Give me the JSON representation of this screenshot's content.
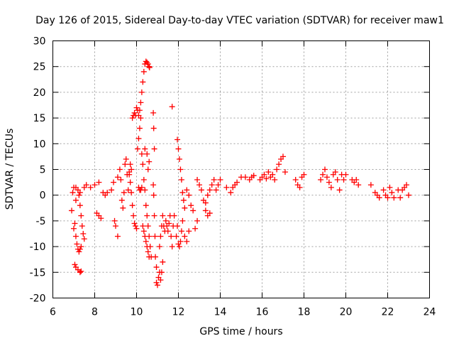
{
  "chart_data": {
    "type": "scatter",
    "title": "Day 126 of 2015, Sidereal Day-to-day VTEC variation (SDTVAR) for receiver maw1",
    "xlabel": "GPS time / hours",
    "ylabel": "SDTVAR / TECUs",
    "xlim": [
      6,
      24
    ],
    "ylim": [
      -20,
      30
    ],
    "xticks": [
      6,
      8,
      10,
      12,
      14,
      16,
      18,
      20,
      22,
      24
    ],
    "yticks": [
      -20,
      -15,
      -10,
      -5,
      0,
      5,
      10,
      15,
      20,
      25,
      30
    ],
    "grid": true,
    "marker": "+",
    "color": "#ff0000",
    "series": [
      {
        "name": "SDTVAR",
        "points": [
          [
            6.9,
            -3.0
          ],
          [
            6.95,
            0.5
          ],
          [
            7.0,
            1.5
          ],
          [
            7.0,
            -6.5
          ],
          [
            7.05,
            -5.5
          ],
          [
            7.1,
            -1.0
          ],
          [
            7.1,
            -8.0
          ],
          [
            7.15,
            -9.5
          ],
          [
            7.2,
            -10.5
          ],
          [
            7.25,
            -11.0
          ],
          [
            7.3,
            -10.5
          ],
          [
            7.35,
            -10.0
          ],
          [
            7.05,
            -13.5
          ],
          [
            7.1,
            -14.0
          ],
          [
            7.2,
            -14.5
          ],
          [
            7.3,
            -15.0
          ],
          [
            7.35,
            -14.8
          ],
          [
            7.2,
            1.0
          ],
          [
            7.25,
            0.0
          ],
          [
            7.3,
            -2.0
          ],
          [
            7.35,
            -4.0
          ],
          [
            7.4,
            -6.0
          ],
          [
            7.45,
            -7.5
          ],
          [
            7.5,
            -8.5
          ],
          [
            7.1,
            1.5
          ],
          [
            7.3,
            0.5
          ],
          [
            7.5,
            1.5
          ],
          [
            7.6,
            2.0
          ],
          [
            7.8,
            1.5
          ],
          [
            8.0,
            2.0
          ],
          [
            8.2,
            2.5
          ],
          [
            8.4,
            0.5
          ],
          [
            8.5,
            0.0
          ],
          [
            8.6,
            0.5
          ],
          [
            8.8,
            1.0
          ],
          [
            8.9,
            2.5
          ],
          [
            8.1,
            -3.5
          ],
          [
            8.2,
            -4.0
          ],
          [
            8.3,
            -4.5
          ],
          [
            8.95,
            -5.0
          ],
          [
            9.0,
            -6.0
          ],
          [
            9.1,
            -8.0
          ],
          [
            9.1,
            3.5
          ],
          [
            9.2,
            5.0
          ],
          [
            9.25,
            3.0
          ],
          [
            9.3,
            -1.0
          ],
          [
            9.35,
            -2.5
          ],
          [
            9.4,
            0.5
          ],
          [
            9.45,
            6.0
          ],
          [
            9.5,
            7.0
          ],
          [
            9.55,
            4.0
          ],
          [
            9.65,
            4.0
          ],
          [
            9.7,
            2.5
          ],
          [
            9.75,
            0.5
          ],
          [
            9.8,
            -2.0
          ],
          [
            9.85,
            -4.0
          ],
          [
            9.9,
            -5.5
          ],
          [
            9.95,
            -6.0
          ],
          [
            10.0,
            -6.5
          ],
          [
            9.6,
            1.0
          ],
          [
            9.65,
            4.5
          ],
          [
            9.7,
            6.0
          ],
          [
            9.75,
            5.0
          ],
          [
            9.8,
            15.0
          ],
          [
            9.85,
            15.5
          ],
          [
            9.9,
            16.0
          ],
          [
            9.95,
            15.5
          ],
          [
            10.0,
            17.0
          ],
          [
            10.05,
            16.5
          ],
          [
            10.1,
            15.5
          ],
          [
            10.15,
            16.5
          ],
          [
            10.2,
            15.0
          ],
          [
            10.1,
            1.5
          ],
          [
            10.15,
            1.0
          ],
          [
            10.2,
            1.0
          ],
          [
            10.25,
            1.5
          ],
          [
            10.05,
            9.0
          ],
          [
            10.1,
            11.0
          ],
          [
            10.15,
            13.0
          ],
          [
            10.2,
            18.0
          ],
          [
            10.25,
            20.0
          ],
          [
            10.3,
            22.0
          ],
          [
            10.35,
            24.0
          ],
          [
            10.4,
            25.5
          ],
          [
            10.45,
            26.0
          ],
          [
            10.5,
            25.8
          ],
          [
            10.55,
            25.5
          ],
          [
            10.6,
            25.0
          ],
          [
            10.62,
            24.8
          ],
          [
            10.25,
            8.0
          ],
          [
            10.3,
            6.0
          ],
          [
            10.35,
            3.0
          ],
          [
            10.4,
            1.0
          ],
          [
            10.45,
            -2.0
          ],
          [
            10.5,
            -4.0
          ],
          [
            10.55,
            -6.0
          ],
          [
            10.6,
            -8.0
          ],
          [
            10.65,
            -10.0
          ],
          [
            10.7,
            -12.0
          ],
          [
            10.4,
            9.0
          ],
          [
            10.5,
            8.0
          ],
          [
            10.55,
            5.0
          ],
          [
            10.6,
            6.5
          ],
          [
            10.3,
            -6.0
          ],
          [
            10.35,
            -7.0
          ],
          [
            10.4,
            -8.0
          ],
          [
            10.45,
            -9.0
          ],
          [
            10.5,
            -10.0
          ],
          [
            10.55,
            -11.0
          ],
          [
            10.6,
            -12.0
          ],
          [
            10.8,
            16.0
          ],
          [
            10.82,
            13.0
          ],
          [
            10.85,
            9.0
          ],
          [
            10.8,
            2.0
          ],
          [
            10.82,
            0.0
          ],
          [
            10.85,
            -4.0
          ],
          [
            10.88,
            -8.0
          ],
          [
            10.9,
            -12.0
          ],
          [
            10.95,
            -14.0
          ],
          [
            10.95,
            -17.0
          ],
          [
            11.0,
            -17.5
          ],
          [
            11.05,
            -16.0
          ],
          [
            11.1,
            -15.0
          ],
          [
            11.15,
            -16.5
          ],
          [
            11.2,
            -15.0
          ],
          [
            11.25,
            -13.0
          ],
          [
            11.1,
            -10.0
          ],
          [
            11.15,
            -8.0
          ],
          [
            11.2,
            -6.0
          ],
          [
            11.25,
            -4.0
          ],
          [
            11.3,
            -6.0
          ],
          [
            11.35,
            -7.0
          ],
          [
            11.4,
            -5.0
          ],
          [
            11.45,
            -6.0
          ],
          [
            11.5,
            -7.0
          ],
          [
            11.55,
            -5.5
          ],
          [
            11.6,
            -4.0
          ],
          [
            11.65,
            -8.0
          ],
          [
            11.7,
            -10.0
          ],
          [
            11.75,
            -6.0
          ],
          [
            11.8,
            -4.0
          ],
          [
            11.7,
            17.2
          ],
          [
            11.95,
            10.8
          ],
          [
            12.0,
            9.0
          ],
          [
            12.05,
            7.0
          ],
          [
            12.1,
            5.0
          ],
          [
            12.15,
            3.0
          ],
          [
            12.2,
            0.5
          ],
          [
            12.25,
            -1.0
          ],
          [
            12.3,
            -2.5
          ],
          [
            11.9,
            -8.0
          ],
          [
            11.95,
            -6.0
          ],
          [
            12.0,
            -9.5
          ],
          [
            12.05,
            -10.0
          ],
          [
            12.1,
            -9.0
          ],
          [
            12.15,
            -7.0
          ],
          [
            12.2,
            -5.0
          ],
          [
            12.3,
            -8.0
          ],
          [
            12.4,
            -9.0
          ],
          [
            12.5,
            -7.0
          ],
          [
            12.4,
            1.0
          ],
          [
            12.5,
            0.0
          ],
          [
            12.6,
            -2.0
          ],
          [
            12.7,
            -3.0
          ],
          [
            12.8,
            -6.5
          ],
          [
            12.9,
            -5.0
          ],
          [
            12.9,
            3.0
          ],
          [
            13.0,
            2.0
          ],
          [
            13.1,
            1.0
          ],
          [
            13.2,
            -1.0
          ],
          [
            13.3,
            -1.5
          ],
          [
            13.4,
            0.0
          ],
          [
            13.5,
            1.0
          ],
          [
            13.6,
            2.0
          ],
          [
            13.7,
            3.0
          ],
          [
            13.8,
            1.0
          ],
          [
            13.9,
            2.0
          ],
          [
            14.0,
            3.0
          ],
          [
            13.3,
            -3.0
          ],
          [
            13.4,
            -4.0
          ],
          [
            13.5,
            -3.5
          ],
          [
            14.3,
            1.5
          ],
          [
            14.5,
            0.5
          ],
          [
            14.6,
            1.5
          ],
          [
            14.7,
            2.0
          ],
          [
            14.8,
            2.5
          ],
          [
            15.0,
            3.5
          ],
          [
            15.2,
            3.5
          ],
          [
            15.4,
            3.0
          ],
          [
            15.5,
            3.5
          ],
          [
            15.6,
            3.8
          ],
          [
            15.9,
            3.0
          ],
          [
            16.0,
            3.5
          ],
          [
            16.1,
            4.0
          ],
          [
            16.2,
            3.2
          ],
          [
            16.3,
            4.5
          ],
          [
            16.4,
            3.5
          ],
          [
            16.5,
            4.0
          ],
          [
            16.6,
            3.0
          ],
          [
            16.7,
            5.0
          ],
          [
            16.8,
            6.0
          ],
          [
            16.9,
            7.0
          ],
          [
            17.0,
            7.5
          ],
          [
            17.1,
            4.5
          ],
          [
            17.6,
            3.0
          ],
          [
            17.7,
            2.0
          ],
          [
            17.8,
            1.5
          ],
          [
            17.9,
            3.5
          ],
          [
            18.0,
            4.0
          ],
          [
            18.8,
            3.0
          ],
          [
            18.9,
            4.0
          ],
          [
            19.0,
            5.0
          ],
          [
            19.1,
            3.5
          ],
          [
            19.2,
            2.5
          ],
          [
            19.3,
            1.5
          ],
          [
            19.4,
            4.0
          ],
          [
            19.5,
            4.5
          ],
          [
            19.6,
            3.0
          ],
          [
            19.7,
            1.0
          ],
          [
            19.8,
            4.0
          ],
          [
            19.9,
            3.0
          ],
          [
            20.0,
            4.0
          ],
          [
            20.3,
            3.0
          ],
          [
            20.4,
            2.5
          ],
          [
            20.5,
            3.0
          ],
          [
            20.6,
            2.0
          ],
          [
            21.2,
            2.0
          ],
          [
            21.4,
            0.5
          ],
          [
            21.5,
            0.0
          ],
          [
            21.6,
            -0.5
          ],
          [
            21.8,
            1.0
          ],
          [
            21.9,
            0.0
          ],
          [
            22.0,
            -0.5
          ],
          [
            22.1,
            1.5
          ],
          [
            22.2,
            0.5
          ],
          [
            22.3,
            -0.5
          ],
          [
            22.5,
            1.0
          ],
          [
            22.6,
            -0.5
          ],
          [
            22.7,
            1.0
          ],
          [
            22.8,
            1.5
          ],
          [
            22.9,
            2.0
          ],
          [
            23.0,
            0.0
          ]
        ]
      }
    ]
  }
}
